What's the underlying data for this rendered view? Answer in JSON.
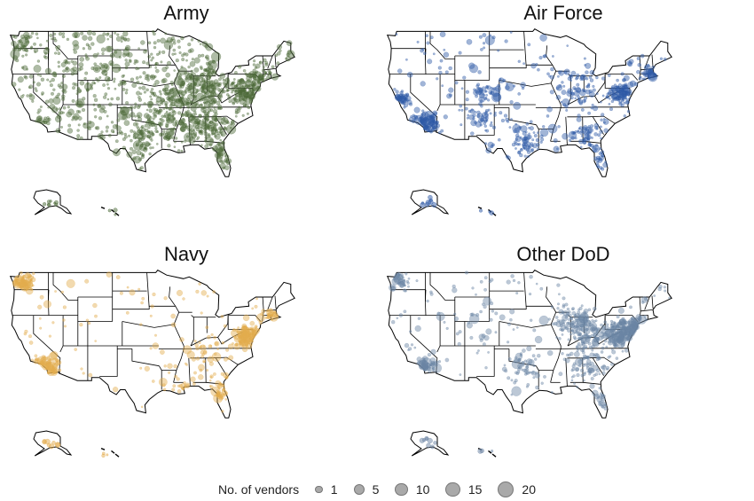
{
  "panels": [
    {
      "title": "Army",
      "color": "#4e6b3a"
    },
    {
      "title": "Air Force",
      "color": "#2f5aa6"
    },
    {
      "title": "Navy",
      "color": "#e3ac4e"
    },
    {
      "title": "Other DoD",
      "color": "#6b84a3"
    }
  ],
  "legend": {
    "title": "No. of vendors",
    "items": [
      {
        "label": "1",
        "value": 1
      },
      {
        "label": "5",
        "value": 5
      },
      {
        "label": "10",
        "value": 10
      },
      {
        "label": "15",
        "value": 15
      },
      {
        "label": "20",
        "value": 20
      }
    ]
  }
}
